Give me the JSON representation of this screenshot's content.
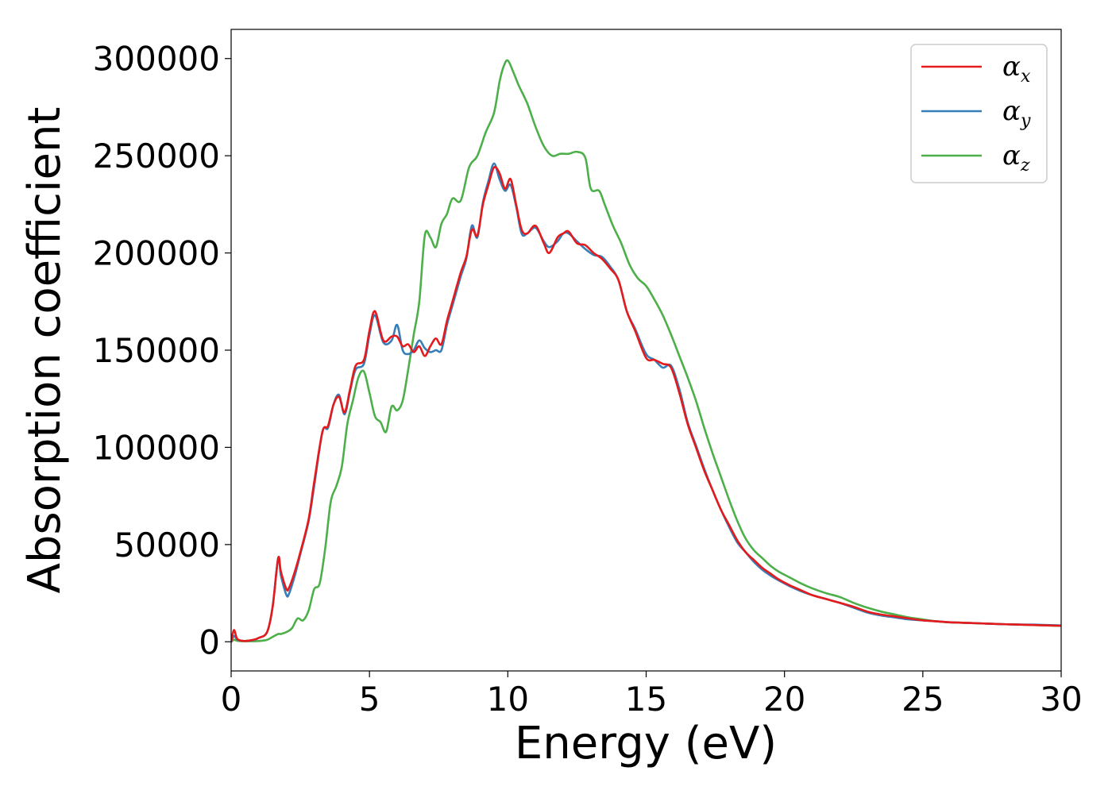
{
  "chart_data": {
    "type": "line",
    "xlabel": "Energy (eV)",
    "ylabel": "Absorption coefficient",
    "xlim": [
      0,
      30
    ],
    "ylim": [
      -15000,
      315000
    ],
    "xticks": [
      0,
      5,
      10,
      15,
      20,
      25,
      30
    ],
    "yticks": [
      0,
      50000,
      100000,
      150000,
      200000,
      250000,
      300000
    ],
    "grid": false,
    "legend_position": "top-right",
    "series": [
      {
        "name": "αx",
        "symbol": "α",
        "subscript": "x",
        "color": "#e41a1c",
        "x": [
          0,
          0.1,
          0.2,
          0.3,
          0.5,
          0.8,
          1.0,
          1.3,
          1.5,
          1.7,
          1.8,
          2.0,
          2.1,
          2.3,
          2.5,
          2.8,
          3.0,
          3.3,
          3.5,
          3.7,
          3.9,
          4.1,
          4.3,
          4.5,
          4.8,
          5.0,
          5.2,
          5.5,
          5.8,
          6.0,
          6.2,
          6.4,
          6.6,
          6.8,
          7.0,
          7.2,
          7.4,
          7.6,
          7.8,
          8.0,
          8.3,
          8.5,
          8.7,
          8.9,
          9.1,
          9.3,
          9.5,
          9.7,
          9.9,
          10.1,
          10.3,
          10.5,
          10.7,
          11.0,
          11.3,
          11.5,
          11.8,
          12.0,
          12.2,
          12.5,
          12.8,
          13.1,
          13.4,
          13.7,
          14.0,
          14.3,
          14.6,
          15.0,
          15.3,
          15.6,
          15.9,
          16.2,
          16.5,
          16.8,
          17.1,
          17.4,
          17.7,
          18.0,
          18.3,
          18.6,
          18.9,
          19.2,
          19.5,
          19.8,
          20.2,
          20.6,
          21.0,
          21.5,
          22.0,
          22.5,
          23.0,
          23.5,
          24.0,
          24.5,
          25.0,
          25.5,
          26.0,
          27.0,
          28.0,
          29.0,
          30.0
        ],
        "y": [
          0,
          6000,
          2000,
          800,
          400,
          1000,
          2000,
          5000,
          18000,
          43000,
          36000,
          27000,
          28000,
          36000,
          46000,
          63000,
          82000,
          108000,
          111000,
          122000,
          126000,
          118000,
          130000,
          142000,
          145000,
          160000,
          170000,
          155000,
          157000,
          157000,
          152000,
          153000,
          149000,
          152000,
          147000,
          152000,
          156000,
          153000,
          165000,
          175000,
          190000,
          198000,
          212000,
          209000,
          225000,
          235000,
          244000,
          241000,
          233000,
          238000,
          225000,
          212000,
          210000,
          214000,
          205000,
          200000,
          208000,
          210000,
          211000,
          205000,
          204000,
          200000,
          197000,
          192000,
          186000,
          170000,
          160000,
          146000,
          145000,
          143000,
          141000,
          128000,
          112000,
          100000,
          88000,
          78000,
          68000,
          60000,
          52000,
          46000,
          42000,
          38000,
          35000,
          32000,
          29000,
          26500,
          24000,
          22000,
          20000,
          18000,
          15500,
          14000,
          13000,
          12000,
          11000,
          10500,
          10000,
          9500,
          9000,
          8600,
          8200
        ]
      },
      {
        "name": "αy",
        "symbol": "α",
        "subscript": "y",
        "color": "#377eb8",
        "x": [
          0,
          0.1,
          0.2,
          0.3,
          0.5,
          0.8,
          1.0,
          1.3,
          1.5,
          1.7,
          1.8,
          2.0,
          2.1,
          2.3,
          2.5,
          2.8,
          3.0,
          3.3,
          3.5,
          3.7,
          3.9,
          4.1,
          4.3,
          4.5,
          4.8,
          5.0,
          5.2,
          5.5,
          5.8,
          6.0,
          6.2,
          6.4,
          6.6,
          6.8,
          7.0,
          7.2,
          7.4,
          7.6,
          7.8,
          8.0,
          8.3,
          8.5,
          8.7,
          8.9,
          9.1,
          9.3,
          9.5,
          9.7,
          9.9,
          10.1,
          10.3,
          10.5,
          10.7,
          11.0,
          11.3,
          11.5,
          11.8,
          12.0,
          12.2,
          12.5,
          12.8,
          13.1,
          13.4,
          13.7,
          14.0,
          14.3,
          14.6,
          15.0,
          15.3,
          15.6,
          15.9,
          16.2,
          16.5,
          16.8,
          17.1,
          17.4,
          17.7,
          18.0,
          18.3,
          18.6,
          18.9,
          19.2,
          19.5,
          19.8,
          20.2,
          20.6,
          21.0,
          21.5,
          22.0,
          22.5,
          23.0,
          23.5,
          24.0,
          24.5,
          25.0,
          25.5,
          26.0,
          27.0,
          28.0,
          29.0,
          30.0
        ],
        "y": [
          0,
          3000,
          1500,
          700,
          400,
          900,
          2000,
          5000,
          18000,
          43000,
          34000,
          24000,
          25000,
          34000,
          45000,
          62000,
          80000,
          108000,
          110000,
          122000,
          127000,
          117000,
          129000,
          140000,
          143000,
          158000,
          168000,
          154000,
          155000,
          163000,
          150000,
          148000,
          150000,
          155000,
          151000,
          149000,
          150000,
          150000,
          163000,
          173000,
          188000,
          197000,
          214000,
          208000,
          226000,
          237000,
          246000,
          238000,
          232000,
          235000,
          224000,
          210000,
          210000,
          213000,
          206000,
          203000,
          206000,
          210000,
          210000,
          206000,
          202000,
          199000,
          198000,
          193000,
          186000,
          170000,
          161000,
          148000,
          145000,
          141000,
          142000,
          130000,
          113000,
          101000,
          89000,
          78000,
          68000,
          59000,
          51000,
          46000,
          41000,
          37000,
          34000,
          31500,
          28500,
          26000,
          24000,
          22000,
          20000,
          17500,
          15000,
          13500,
          12500,
          11500,
          11000,
          10500,
          10000,
          9500,
          9000,
          8800,
          8400
        ]
      },
      {
        "name": "αz",
        "symbol": "α",
        "subscript": "z",
        "color": "#4daf4a",
        "x": [
          0,
          0.1,
          0.2,
          0.3,
          0.5,
          0.8,
          1.0,
          1.3,
          1.5,
          1.7,
          1.8,
          2.0,
          2.2,
          2.4,
          2.6,
          2.8,
          3.0,
          3.2,
          3.4,
          3.6,
          3.8,
          4.0,
          4.2,
          4.4,
          4.6,
          4.8,
          5.0,
          5.2,
          5.4,
          5.6,
          5.8,
          6.0,
          6.2,
          6.4,
          6.6,
          6.8,
          7.0,
          7.2,
          7.4,
          7.6,
          7.8,
          8.0,
          8.3,
          8.6,
          8.9,
          9.2,
          9.5,
          9.7,
          9.85,
          10.0,
          10.2,
          10.4,
          10.7,
          11.0,
          11.3,
          11.6,
          11.9,
          12.2,
          12.5,
          12.8,
          13.0,
          13.3,
          13.5,
          13.8,
          14.1,
          14.4,
          14.7,
          15.0,
          15.3,
          15.6,
          15.9,
          16.2,
          16.5,
          16.8,
          17.1,
          17.4,
          17.7,
          18.0,
          18.3,
          18.6,
          18.9,
          19.2,
          19.5,
          19.8,
          20.2,
          20.6,
          21.0,
          21.5,
          22.0,
          22.5,
          23.0,
          23.5,
          24.0,
          24.5,
          25.0,
          25.5,
          26.0,
          27.0,
          28.0,
          29.0,
          30.0
        ],
        "y": [
          0,
          1000,
          600,
          400,
          300,
          300,
          400,
          1000,
          2500,
          4000,
          4000,
          5000,
          7000,
          12000,
          11000,
          16000,
          27000,
          30000,
          48000,
          72000,
          80000,
          90000,
          112000,
          124000,
          136000,
          139000,
          128000,
          116000,
          113000,
          108000,
          121000,
          119000,
          124000,
          140000,
          158000,
          175000,
          209000,
          208000,
          203000,
          215000,
          220000,
          228000,
          227000,
          244000,
          250000,
          262000,
          272000,
          288000,
          296000,
          299000,
          293000,
          286000,
          277000,
          265000,
          255000,
          250000,
          251000,
          251000,
          252000,
          249000,
          233000,
          232000,
          225000,
          214000,
          205000,
          194000,
          187000,
          183000,
          176000,
          168000,
          158000,
          147000,
          136000,
          124000,
          110000,
          97000,
          85000,
          73000,
          62000,
          53000,
          47000,
          43000,
          39000,
          36000,
          33000,
          30000,
          27500,
          25000,
          23000,
          20000,
          17500,
          15500,
          14000,
          12500,
          11500,
          10500,
          10000,
          9500,
          9000,
          8600,
          8200
        ]
      }
    ]
  }
}
